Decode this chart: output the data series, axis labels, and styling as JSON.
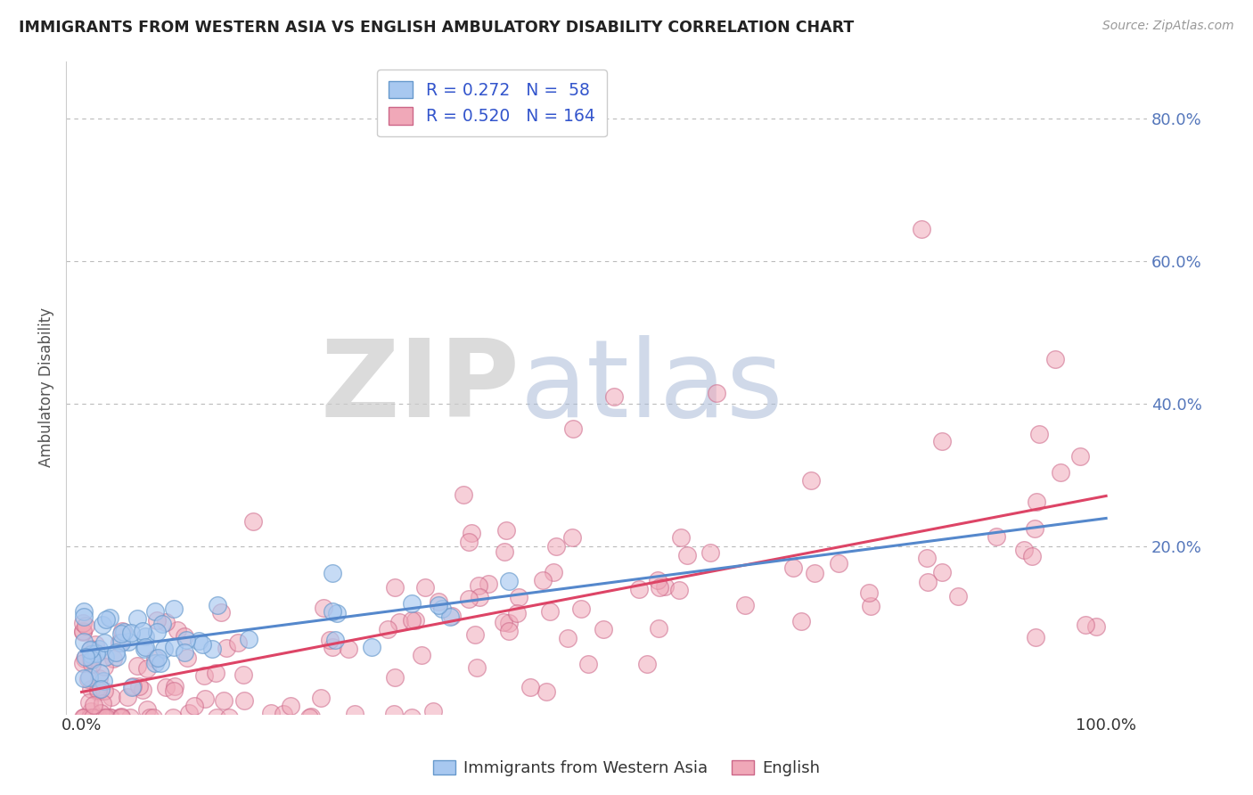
{
  "title": "IMMIGRANTS FROM WESTERN ASIA VS ENGLISH AMBULATORY DISABILITY CORRELATION CHART",
  "source": "Source: ZipAtlas.com",
  "ylabel": "Ambulatory Disability",
  "color_blue_fill": "#a8c8f0",
  "color_blue_edge": "#6699cc",
  "color_pink_fill": "#f0a8b8",
  "color_pink_edge": "#cc6688",
  "line_blue_color": "#5588cc",
  "line_pink_color": "#dd4466",
  "watermark_ZIP_color": "#c8c8c8",
  "watermark_atlas_color": "#aabbd8",
  "bg_color": "#ffffff",
  "grid_color": "#bbbbbb",
  "ytick_vals": [
    0.2,
    0.4,
    0.6,
    0.8
  ],
  "legend_text_color": "#3355cc",
  "axis_label_color": "#5577bb",
  "xlabel_color": "#333333"
}
